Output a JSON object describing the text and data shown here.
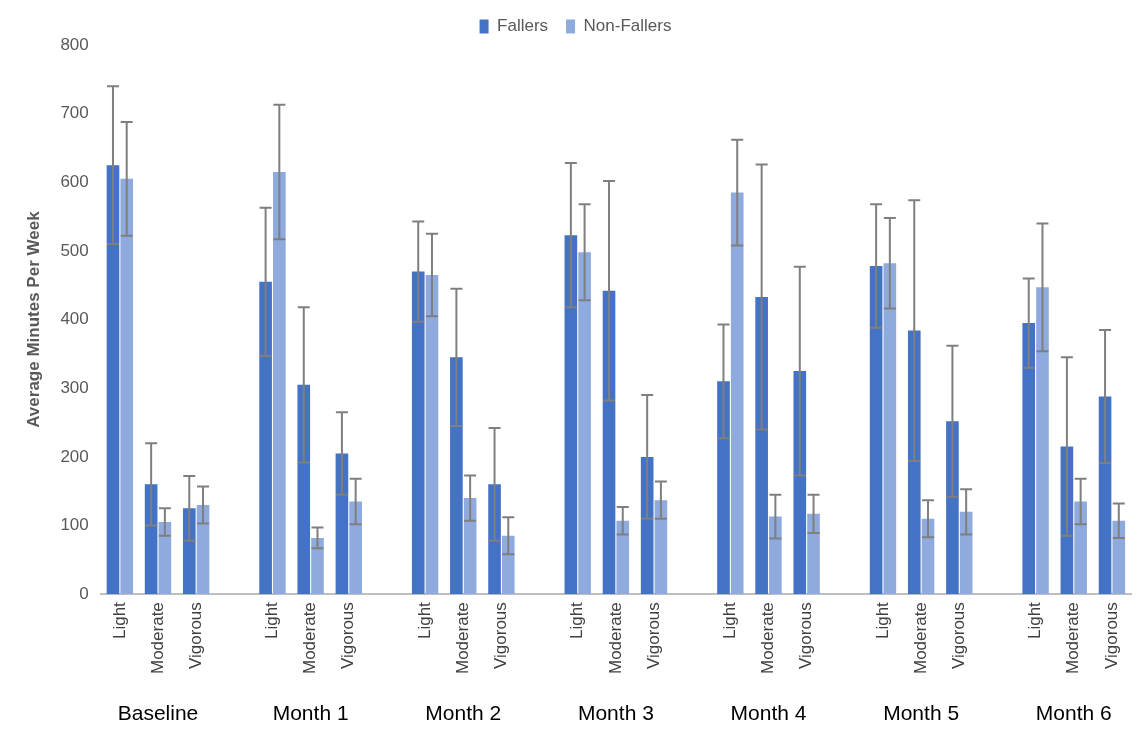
{
  "chart_data": {
    "type": "bar",
    "ylabel": "Average Minutes Per Week",
    "categories": [
      "Light",
      "Moderate",
      "Vigorous",
      null,
      "Light",
      "Moderate",
      "Vigorous",
      null,
      "Light",
      "Moderate",
      "Vigorous",
      null,
      "Light",
      "Moderate",
      "Vigorous",
      null,
      "Light",
      "Moderate",
      "Vigorous",
      null,
      "Light",
      "Moderate",
      "Vigorous",
      null,
      "Light",
      "Moderate",
      "Vigorous"
    ],
    "series": [
      {
        "name": "Fallers",
        "color": "#4472c4",
        "values": [
          625,
          160,
          125,
          null,
          455,
          305,
          205,
          null,
          470,
          345,
          160,
          null,
          523,
          442,
          200,
          null,
          310,
          433,
          325,
          null,
          478,
          384,
          252,
          null,
          395,
          215,
          288
        ],
        "errors": [
          115,
          60,
          47,
          null,
          108,
          113,
          60,
          null,
          73,
          100,
          82,
          null,
          105,
          160,
          90,
          null,
          83,
          193,
          152,
          null,
          90,
          190,
          110,
          null,
          65,
          130,
          97
        ]
      },
      {
        "name": "Non-Fallers",
        "color": "#8faadc",
        "values": [
          605,
          105,
          130,
          null,
          615,
          82,
          135,
          null,
          465,
          140,
          85,
          null,
          498,
          107,
          137,
          null,
          585,
          113,
          117,
          null,
          482,
          110,
          120,
          null,
          447,
          135,
          107
        ],
        "errors": [
          83,
          20,
          27,
          null,
          98,
          15,
          33,
          null,
          60,
          33,
          27,
          null,
          70,
          20,
          27,
          null,
          77,
          32,
          28,
          null,
          66,
          27,
          33,
          null,
          93,
          33,
          25
        ]
      }
    ],
    "ylim": [
      0,
      800
    ],
    "yticks": [
      0,
      100,
      200,
      300,
      400,
      500,
      600,
      700,
      800
    ],
    "grid": false,
    "legend": "top",
    "annotations": [
      "Baseline",
      "Month 1",
      "Month 2",
      "Month 3",
      "Month 4",
      "Month 5",
      "Month 6"
    ]
  }
}
